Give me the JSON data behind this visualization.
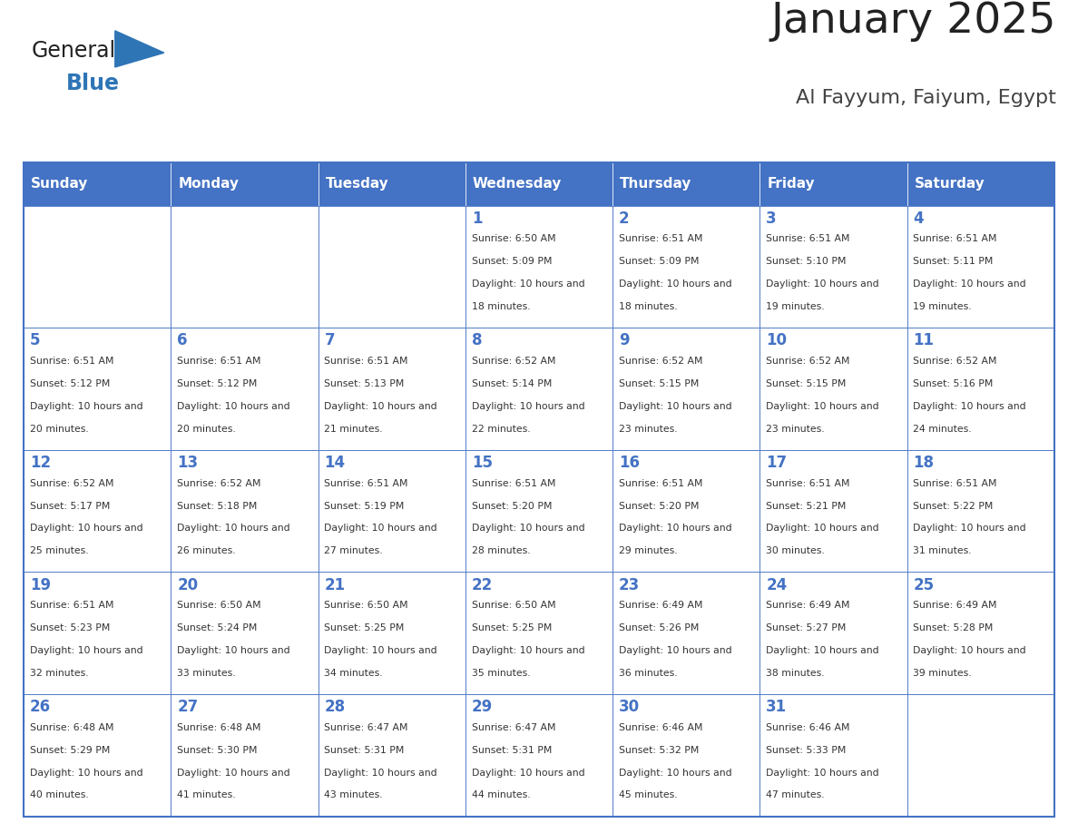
{
  "title": "January 2025",
  "subtitle": "Al Fayyum, Faiyum, Egypt",
  "header_bg": "#4472C4",
  "header_text_color": "#FFFFFF",
  "border_color": "#4472C4",
  "day_names": [
    "Sunday",
    "Monday",
    "Tuesday",
    "Wednesday",
    "Thursday",
    "Friday",
    "Saturday"
  ],
  "title_color": "#222222",
  "subtitle_color": "#444444",
  "day_number_color": "#4472C4",
  "cell_text_color": "#333333",
  "logo_general_color": "#222222",
  "logo_blue_color": "#2E75B6",
  "weeks": [
    [
      {
        "day": "",
        "sunrise": "",
        "sunset": "",
        "daylight": ""
      },
      {
        "day": "",
        "sunrise": "",
        "sunset": "",
        "daylight": ""
      },
      {
        "day": "",
        "sunrise": "",
        "sunset": "",
        "daylight": ""
      },
      {
        "day": "1",
        "sunrise": "6:50 AM",
        "sunset": "5:09 PM",
        "daylight": "10 hours and 18 minutes."
      },
      {
        "day": "2",
        "sunrise": "6:51 AM",
        "sunset": "5:09 PM",
        "daylight": "10 hours and 18 minutes."
      },
      {
        "day": "3",
        "sunrise": "6:51 AM",
        "sunset": "5:10 PM",
        "daylight": "10 hours and 19 minutes."
      },
      {
        "day": "4",
        "sunrise": "6:51 AM",
        "sunset": "5:11 PM",
        "daylight": "10 hours and 19 minutes."
      }
    ],
    [
      {
        "day": "5",
        "sunrise": "6:51 AM",
        "sunset": "5:12 PM",
        "daylight": "10 hours and 20 minutes."
      },
      {
        "day": "6",
        "sunrise": "6:51 AM",
        "sunset": "5:12 PM",
        "daylight": "10 hours and 20 minutes."
      },
      {
        "day": "7",
        "sunrise": "6:51 AM",
        "sunset": "5:13 PM",
        "daylight": "10 hours and 21 minutes."
      },
      {
        "day": "8",
        "sunrise": "6:52 AM",
        "sunset": "5:14 PM",
        "daylight": "10 hours and 22 minutes."
      },
      {
        "day": "9",
        "sunrise": "6:52 AM",
        "sunset": "5:15 PM",
        "daylight": "10 hours and 23 minutes."
      },
      {
        "day": "10",
        "sunrise": "6:52 AM",
        "sunset": "5:15 PM",
        "daylight": "10 hours and 23 minutes."
      },
      {
        "day": "11",
        "sunrise": "6:52 AM",
        "sunset": "5:16 PM",
        "daylight": "10 hours and 24 minutes."
      }
    ],
    [
      {
        "day": "12",
        "sunrise": "6:52 AM",
        "sunset": "5:17 PM",
        "daylight": "10 hours and 25 minutes."
      },
      {
        "day": "13",
        "sunrise": "6:52 AM",
        "sunset": "5:18 PM",
        "daylight": "10 hours and 26 minutes."
      },
      {
        "day": "14",
        "sunrise": "6:51 AM",
        "sunset": "5:19 PM",
        "daylight": "10 hours and 27 minutes."
      },
      {
        "day": "15",
        "sunrise": "6:51 AM",
        "sunset": "5:20 PM",
        "daylight": "10 hours and 28 minutes."
      },
      {
        "day": "16",
        "sunrise": "6:51 AM",
        "sunset": "5:20 PM",
        "daylight": "10 hours and 29 minutes."
      },
      {
        "day": "17",
        "sunrise": "6:51 AM",
        "sunset": "5:21 PM",
        "daylight": "10 hours and 30 minutes."
      },
      {
        "day": "18",
        "sunrise": "6:51 AM",
        "sunset": "5:22 PM",
        "daylight": "10 hours and 31 minutes."
      }
    ],
    [
      {
        "day": "19",
        "sunrise": "6:51 AM",
        "sunset": "5:23 PM",
        "daylight": "10 hours and 32 minutes."
      },
      {
        "day": "20",
        "sunrise": "6:50 AM",
        "sunset": "5:24 PM",
        "daylight": "10 hours and 33 minutes."
      },
      {
        "day": "21",
        "sunrise": "6:50 AM",
        "sunset": "5:25 PM",
        "daylight": "10 hours and 34 minutes."
      },
      {
        "day": "22",
        "sunrise": "6:50 AM",
        "sunset": "5:25 PM",
        "daylight": "10 hours and 35 minutes."
      },
      {
        "day": "23",
        "sunrise": "6:49 AM",
        "sunset": "5:26 PM",
        "daylight": "10 hours and 36 minutes."
      },
      {
        "day": "24",
        "sunrise": "6:49 AM",
        "sunset": "5:27 PM",
        "daylight": "10 hours and 38 minutes."
      },
      {
        "day": "25",
        "sunrise": "6:49 AM",
        "sunset": "5:28 PM",
        "daylight": "10 hours and 39 minutes."
      }
    ],
    [
      {
        "day": "26",
        "sunrise": "6:48 AM",
        "sunset": "5:29 PM",
        "daylight": "10 hours and 40 minutes."
      },
      {
        "day": "27",
        "sunrise": "6:48 AM",
        "sunset": "5:30 PM",
        "daylight": "10 hours and 41 minutes."
      },
      {
        "day": "28",
        "sunrise": "6:47 AM",
        "sunset": "5:31 PM",
        "daylight": "10 hours and 43 minutes."
      },
      {
        "day": "29",
        "sunrise": "6:47 AM",
        "sunset": "5:31 PM",
        "daylight": "10 hours and 44 minutes."
      },
      {
        "day": "30",
        "sunrise": "6:46 AM",
        "sunset": "5:32 PM",
        "daylight": "10 hours and 45 minutes."
      },
      {
        "day": "31",
        "sunrise": "6:46 AM",
        "sunset": "5:33 PM",
        "daylight": "10 hours and 47 minutes."
      },
      {
        "day": "",
        "sunrise": "",
        "sunset": "",
        "daylight": ""
      }
    ]
  ]
}
